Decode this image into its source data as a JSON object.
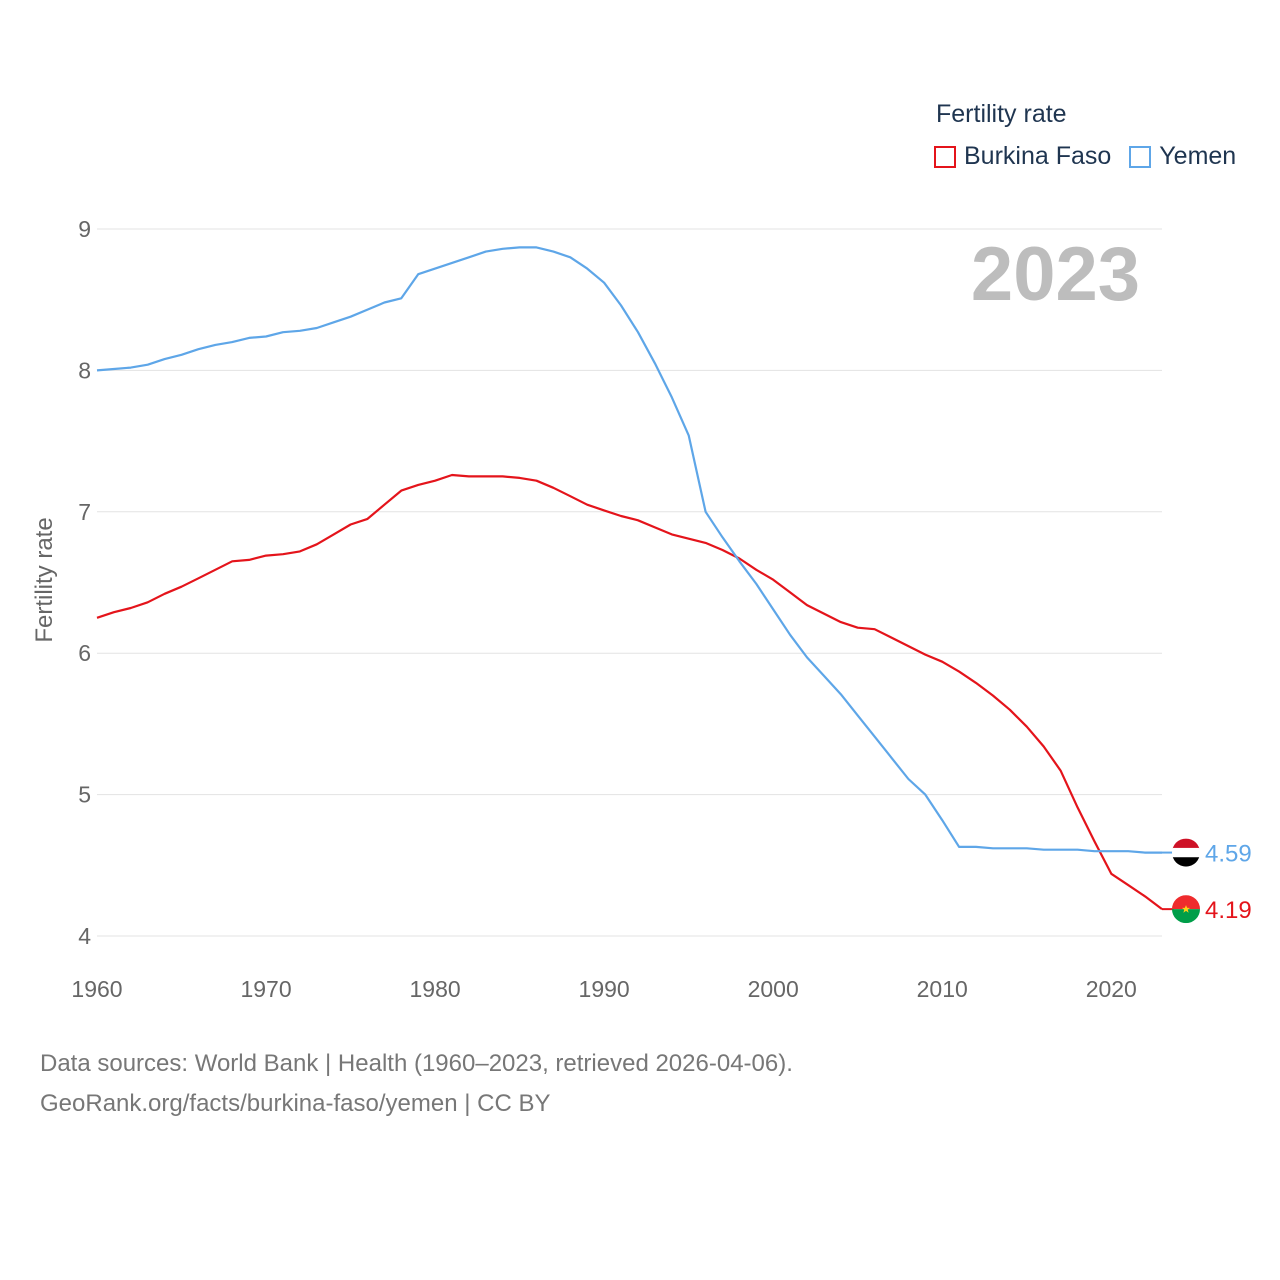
{
  "legend": {
    "title": "Fertility rate",
    "items": [
      {
        "label": "Burkina Faso",
        "color": "#e4141b"
      },
      {
        "label": "Yemen",
        "color": "#5ea6e8"
      }
    ]
  },
  "year_display": "2023",
  "footer": {
    "line1": "Data sources: World Bank | Health (1960–2023, retrieved 2026-04-06).",
    "line2": "GeoRank.org/facts/burkina-faso/yemen | CC BY"
  },
  "chart_data": {
    "type": "line",
    "title": "Fertility rate",
    "xlabel": "",
    "ylabel": "Fertility rate",
    "xlim": [
      1960,
      2023
    ],
    "ylim": [
      4,
      9
    ],
    "grid": true,
    "x_ticks": [
      1960,
      1970,
      1980,
      1990,
      2000,
      2010,
      2020
    ],
    "y_ticks": [
      4,
      5,
      6,
      7,
      8,
      9
    ],
    "x": [
      1960,
      1961,
      1962,
      1963,
      1964,
      1965,
      1966,
      1967,
      1968,
      1969,
      1970,
      1971,
      1972,
      1973,
      1974,
      1975,
      1976,
      1977,
      1978,
      1979,
      1980,
      1981,
      1982,
      1983,
      1984,
      1985,
      1986,
      1987,
      1988,
      1989,
      1990,
      1991,
      1992,
      1993,
      1994,
      1995,
      1996,
      1997,
      1998,
      1999,
      2000,
      2001,
      2002,
      2003,
      2004,
      2005,
      2006,
      2007,
      2008,
      2009,
      2010,
      2011,
      2012,
      2013,
      2014,
      2015,
      2016,
      2017,
      2018,
      2019,
      2020,
      2021,
      2022,
      2023
    ],
    "series": [
      {
        "name": "Burkina Faso",
        "color": "#e4141b",
        "end_label": "4.19",
        "values": [
          6.25,
          6.29,
          6.32,
          6.36,
          6.42,
          6.47,
          6.53,
          6.59,
          6.65,
          6.66,
          6.69,
          6.7,
          6.72,
          6.77,
          6.84,
          6.91,
          6.95,
          7.05,
          7.15,
          7.19,
          7.22,
          7.26,
          7.25,
          7.25,
          7.25,
          7.24,
          7.22,
          7.17,
          7.11,
          7.05,
          7.01,
          6.97,
          6.94,
          6.89,
          6.84,
          6.81,
          6.78,
          6.73,
          6.67,
          6.59,
          6.52,
          6.43,
          6.34,
          6.28,
          6.22,
          6.18,
          6.17,
          6.11,
          6.05,
          5.99,
          5.94,
          5.87,
          5.79,
          5.7,
          5.6,
          5.48,
          5.34,
          5.17,
          4.91,
          4.67,
          4.44,
          4.36,
          4.28,
          4.19
        ]
      },
      {
        "name": "Yemen",
        "color": "#5ea6e8",
        "end_label": "4.59",
        "values": [
          8.0,
          8.01,
          8.02,
          8.04,
          8.08,
          8.11,
          8.15,
          8.18,
          8.2,
          8.23,
          8.24,
          8.27,
          8.28,
          8.3,
          8.34,
          8.38,
          8.43,
          8.48,
          8.51,
          8.68,
          8.72,
          8.76,
          8.8,
          8.84,
          8.86,
          8.87,
          8.87,
          8.84,
          8.8,
          8.72,
          8.62,
          8.46,
          8.27,
          8.05,
          7.81,
          7.54,
          7.0,
          6.82,
          6.65,
          6.49,
          6.31,
          6.13,
          5.97,
          5.84,
          5.71,
          5.56,
          5.41,
          5.26,
          5.11,
          5.0,
          4.82,
          4.63,
          4.63,
          4.62,
          4.62,
          4.62,
          4.61,
          4.61,
          4.61,
          4.6,
          4.6,
          4.6,
          4.59,
          4.59
        ]
      }
    ]
  }
}
